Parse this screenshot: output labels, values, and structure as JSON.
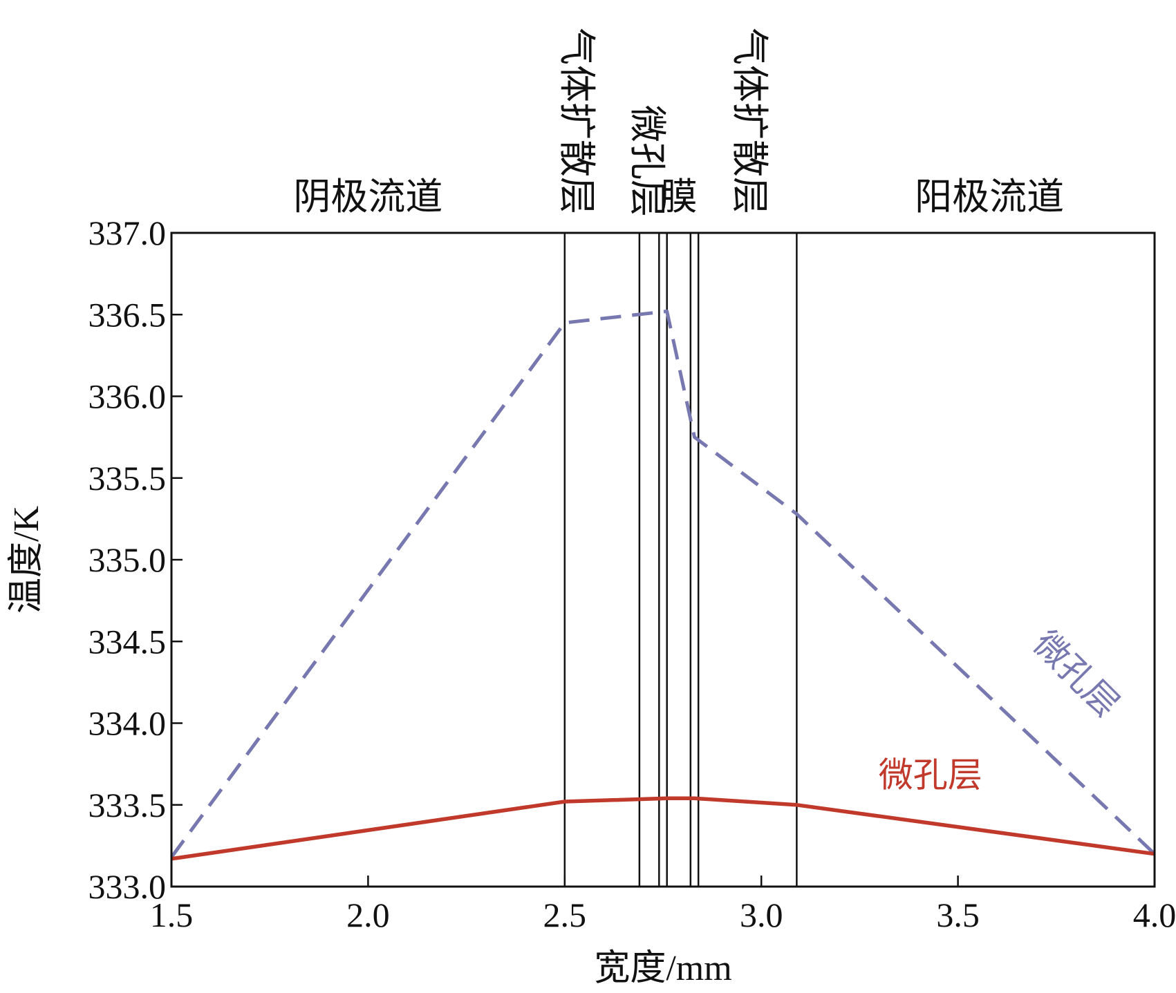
{
  "chart_data": {
    "type": "line",
    "title": "",
    "xlabel": "宽度/mm",
    "ylabel": "温度/K",
    "xlim": [
      1.5,
      4.0
    ],
    "ylim": [
      333.0,
      337.0
    ],
    "xticks": [
      1.5,
      2.0,
      2.5,
      3.0,
      3.5,
      4.0
    ],
    "xtick_labels": [
      "1.5",
      "2.0",
      "2.5",
      "3.0",
      "3.5",
      "4.0"
    ],
    "yticks": [
      333.0,
      333.5,
      334.0,
      334.5,
      335.0,
      335.5,
      336.0,
      336.5,
      337.0
    ],
    "ytick_labels": [
      "333.0",
      "333.5",
      "334.0",
      "334.5",
      "335.0",
      "335.5",
      "336.0",
      "336.5",
      "337.0"
    ],
    "grid": false,
    "legend": "none",
    "boundaries": [
      2.5,
      2.69,
      2.74,
      2.76,
      2.82,
      2.84,
      3.09
    ],
    "regions": [
      {
        "label": "阴极流道",
        "orientation": "horizontal",
        "x": 2.0
      },
      {
        "label": "气体扩散层",
        "orientation": "vertical",
        "x": 2.53
      },
      {
        "label": "微孔层",
        "orientation": "vertical",
        "x": 2.71
      },
      {
        "label": "膜",
        "orientation": "horizontal",
        "x": 2.79
      },
      {
        "label": "气体扩散层",
        "orientation": "vertical",
        "x": 2.97
      },
      {
        "label": "阳极流道",
        "orientation": "horizontal",
        "x": 3.58
      }
    ],
    "series": [
      {
        "style": "dashed",
        "color": "#7878b0",
        "x": [
          1.5,
          2.5,
          2.76,
          2.83,
          3.09,
          4.0
        ],
        "y": [
          333.18,
          336.45,
          336.52,
          335.75,
          335.28,
          333.2
        ]
      },
      {
        "style": "solid",
        "color": "#c0392b",
        "x": [
          1.5,
          2.5,
          2.76,
          2.83,
          3.09,
          4.0
        ],
        "y": [
          333.17,
          333.52,
          333.54,
          333.54,
          333.5,
          333.2
        ]
      }
    ],
    "annotations": [
      {
        "text": "微孔层",
        "color": "#7878b0",
        "x": 3.78,
        "y": 334.25,
        "rotation": 45
      },
      {
        "text": "微孔层",
        "color": "#c0392b",
        "x": 3.43,
        "y": 333.61,
        "rotation": 0
      }
    ]
  }
}
